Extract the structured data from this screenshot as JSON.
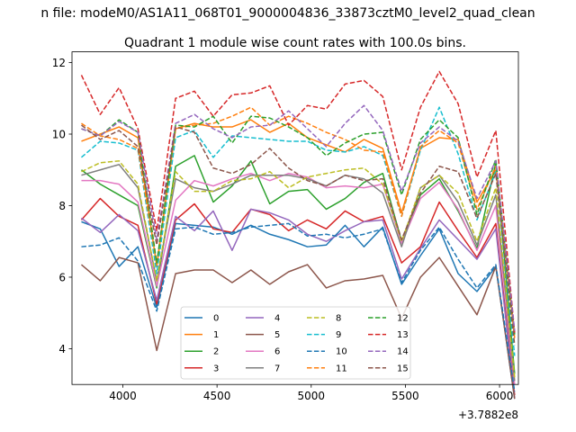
{
  "chart_data": {
    "type": "line",
    "suptitle": "n file: modeM0/AS1A11_068T01_9000004836_33873cztM0_level2_quad_clean",
    "title": "Quadrant 1 module wise count rates with 100.0s bins.",
    "xlabel": "",
    "ylabel": "",
    "x_offset_label": "+3.7882e8",
    "xlim": [
      3730,
      6100
    ],
    "ylim": [
      3.0,
      12.3
    ],
    "xticks": [
      4000,
      4500,
      5000,
      5500,
      6000
    ],
    "yticks": [
      4,
      6,
      8,
      10,
      12
    ],
    "grid": false,
    "legend_position": "lower-center",
    "legend_ncol": 4,
    "x": [
      3780,
      3880,
      3980,
      4080,
      4180,
      4280,
      4380,
      4480,
      4580,
      4680,
      4780,
      4880,
      4980,
      5080,
      5180,
      5280,
      5380,
      5480,
      5580,
      5680,
      5780,
      5880,
      5980,
      6080
    ],
    "series": [
      {
        "name": "0",
        "color": "#1f77b4",
        "dash": "solid",
        "values": [
          7.55,
          7.35,
          6.3,
          6.85,
          5.15,
          7.5,
          7.45,
          7.4,
          7.2,
          7.45,
          7.2,
          7.05,
          6.85,
          6.9,
          7.45,
          6.85,
          7.4,
          5.8,
          6.6,
          7.35,
          6.1,
          5.6,
          6.3,
          2.6
        ]
      },
      {
        "name": "1",
        "color": "#ff7f0e",
        "dash": "solid",
        "values": [
          9.8,
          10.0,
          10.2,
          9.9,
          6.3,
          10.15,
          10.3,
          10.2,
          10.2,
          10.4,
          10.05,
          10.3,
          9.9,
          9.7,
          9.5,
          9.85,
          9.6,
          7.8,
          9.6,
          9.9,
          9.85,
          8.1,
          9.0,
          4.4
        ]
      },
      {
        "name": "2",
        "color": "#2ca02c",
        "dash": "solid",
        "values": [
          9.0,
          8.6,
          8.3,
          8.0,
          5.7,
          9.1,
          9.4,
          8.1,
          8.55,
          9.25,
          8.05,
          8.4,
          8.45,
          7.9,
          8.2,
          8.65,
          8.9,
          7.0,
          8.3,
          8.75,
          7.85,
          6.8,
          9.2,
          3.3
        ]
      },
      {
        "name": "3",
        "color": "#d62728",
        "dash": "solid",
        "values": [
          7.6,
          8.2,
          7.7,
          7.45,
          5.25,
          7.6,
          8.05,
          7.35,
          7.25,
          7.9,
          7.75,
          7.3,
          7.6,
          7.35,
          7.85,
          7.55,
          7.7,
          6.4,
          6.85,
          8.1,
          7.3,
          6.55,
          7.5,
          2.7
        ]
      },
      {
        "name": "4",
        "color": "#9467bd",
        "dash": "solid",
        "values": [
          7.65,
          7.25,
          7.75,
          7.3,
          5.35,
          7.7,
          7.3,
          7.85,
          6.75,
          7.9,
          7.8,
          7.6,
          7.2,
          7.0,
          7.3,
          7.55,
          7.6,
          5.95,
          6.8,
          7.6,
          7.05,
          6.5,
          7.35,
          2.6
        ]
      },
      {
        "name": "5",
        "color": "#8c564b",
        "dash": "solid",
        "values": [
          6.35,
          5.9,
          6.55,
          6.4,
          3.95,
          6.1,
          6.2,
          6.2,
          5.85,
          6.2,
          5.8,
          6.15,
          6.35,
          5.7,
          5.9,
          5.95,
          6.05,
          4.85,
          6.0,
          6.55,
          5.75,
          4.95,
          6.3,
          2.6
        ]
      },
      {
        "name": "6",
        "color": "#e377c2",
        "dash": "solid",
        "values": [
          8.7,
          8.7,
          8.6,
          8.1,
          5.75,
          8.15,
          8.7,
          8.55,
          8.75,
          8.9,
          8.7,
          8.9,
          8.8,
          8.5,
          8.55,
          8.5,
          8.6,
          6.95,
          8.2,
          8.65,
          7.9,
          6.75,
          8.0,
          3.0
        ]
      },
      {
        "name": "7",
        "color": "#7f7f7f",
        "dash": "solid",
        "values": [
          8.85,
          9.0,
          9.15,
          8.5,
          5.9,
          8.75,
          8.5,
          8.4,
          8.6,
          8.85,
          8.85,
          8.85,
          8.75,
          8.55,
          8.85,
          8.75,
          8.35,
          6.85,
          8.5,
          8.85,
          8.1,
          6.9,
          8.3,
          3.1
        ]
      },
      {
        "name": "8",
        "color": "#bcbd22",
        "dash": "dashed",
        "values": [
          8.95,
          9.2,
          9.25,
          8.6,
          5.9,
          8.95,
          8.4,
          8.4,
          8.7,
          8.75,
          8.95,
          8.5,
          8.8,
          8.9,
          9.0,
          9.05,
          8.6,
          7.0,
          8.5,
          8.85,
          8.35,
          7.0,
          8.5,
          3.2
        ]
      },
      {
        "name": "9",
        "color": "#17becf",
        "dash": "dashed",
        "values": [
          9.35,
          9.8,
          9.75,
          9.55,
          6.1,
          9.9,
          10.1,
          9.35,
          9.95,
          9.9,
          9.85,
          9.8,
          9.8,
          9.55,
          9.5,
          9.65,
          9.4,
          7.7,
          9.55,
          10.75,
          9.45,
          7.6,
          8.95,
          3.8
        ]
      },
      {
        "name": "10",
        "color": "#1f77b4",
        "dash": "dashed",
        "values": [
          6.85,
          6.9,
          7.1,
          6.45,
          5.05,
          7.35,
          7.4,
          7.2,
          7.25,
          7.4,
          7.45,
          7.5,
          7.15,
          7.2,
          7.1,
          7.2,
          7.35,
          5.85,
          6.75,
          7.4,
          6.5,
          5.7,
          6.35,
          2.8
        ]
      },
      {
        "name": "11",
        "color": "#ff7f0e",
        "dash": "dashed",
        "values": [
          10.3,
          9.95,
          9.85,
          9.6,
          6.35,
          10.15,
          10.25,
          10.3,
          10.5,
          10.75,
          10.25,
          10.5,
          10.3,
          10.05,
          9.85,
          9.55,
          9.5,
          7.7,
          9.65,
          10.1,
          9.75,
          7.9,
          9.1,
          4.3
        ]
      },
      {
        "name": "12",
        "color": "#2ca02c",
        "dash": "dashed",
        "values": [
          10.15,
          9.95,
          10.4,
          10.05,
          6.4,
          10.25,
          10.2,
          10.5,
          9.75,
          10.5,
          10.45,
          10.2,
          9.9,
          9.4,
          9.75,
          10.0,
          10.05,
          8.3,
          9.85,
          10.4,
          9.9,
          7.75,
          9.3,
          4.4
        ]
      },
      {
        "name": "13",
        "color": "#d62728",
        "dash": "dashed",
        "values": [
          11.65,
          10.55,
          11.3,
          10.15,
          7.3,
          11.0,
          11.2,
          10.5,
          11.1,
          11.15,
          11.35,
          10.25,
          10.8,
          10.7,
          11.4,
          11.5,
          11.05,
          9.0,
          10.75,
          11.75,
          10.85,
          8.8,
          10.1,
          4.45
        ]
      },
      {
        "name": "14",
        "color": "#9467bd",
        "dash": "dashed",
        "values": [
          10.15,
          9.95,
          10.35,
          10.05,
          7.05,
          10.3,
          10.55,
          10.15,
          9.9,
          10.2,
          10.25,
          10.65,
          10.15,
          9.65,
          10.3,
          10.8,
          10.1,
          8.4,
          9.75,
          10.2,
          9.8,
          8.2,
          9.25,
          4.5
        ]
      },
      {
        "name": "15",
        "color": "#8c564b",
        "dash": "dashed",
        "values": [
          10.25,
          9.85,
          10.1,
          9.65,
          6.9,
          10.2,
          10.05,
          9.05,
          8.9,
          9.15,
          9.6,
          9.05,
          8.7,
          8.55,
          8.85,
          8.7,
          8.75,
          7.05,
          8.35,
          9.1,
          8.95,
          7.65,
          8.9,
          4.1
        ]
      }
    ]
  }
}
